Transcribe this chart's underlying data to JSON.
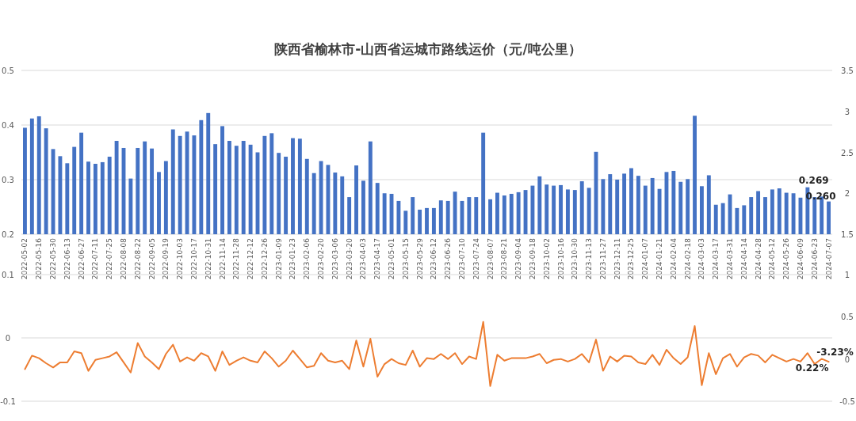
{
  "chart_data": [
    {
      "type": "bar",
      "title": "陕西省榆林市-山西省运城市路线运价（元/吨公里）",
      "categories": [
        "2022-05-02",
        null,
        "2022-05-16",
        null,
        "2022-05-30",
        null,
        "2022-06-13",
        null,
        "2022-06-27",
        null,
        "2022-07-11",
        null,
        "2022-07-25",
        null,
        "2022-08-08",
        null,
        "2022-08-22",
        null,
        "2022-09-05",
        null,
        "2022-09-19",
        null,
        "2022-10-03",
        null,
        "2022-10-17",
        null,
        "2022-10-31",
        null,
        "2022-11-14",
        null,
        "2022-11-28",
        null,
        "2022-12-12",
        null,
        "2022-12-26",
        null,
        "2023-01-09",
        null,
        "2023-01-23",
        null,
        "2023-02-06",
        null,
        "2023-02-20",
        null,
        "2023-03-06",
        null,
        "2023-03-20",
        null,
        "2023-04-03",
        null,
        "2023-04-17",
        null,
        "2023-05-01",
        null,
        "2023-05-15",
        null,
        "2023-05-29",
        null,
        "2023-06-12",
        null,
        "2023-06-26",
        null,
        "2023-07-10",
        null,
        "2023-07-24",
        null,
        "2023-08-07",
        null,
        "2023-08-21",
        null,
        "2023-09-04",
        null,
        "2023-09-18",
        null,
        "2023-10-02",
        null,
        "2023-10-16",
        null,
        "2023-10-30",
        null,
        "2023-11-13",
        null,
        "2023-11-27",
        null,
        "2023-12-11",
        null,
        "2023-12-25",
        null,
        "2024-01-07",
        null,
        "2024-01-21",
        null,
        "2024-02-04",
        null,
        "2024-02-18",
        null,
        "2024-03-03",
        null,
        "2024-03-17",
        null,
        "2024-03-31",
        null,
        "2024-04-14",
        null,
        "2024-04-28",
        null,
        "2024-05-12",
        null,
        "2024-05-26",
        null,
        "2024-06-09",
        null,
        "2024-06-23",
        null,
        "2024-07-07"
      ],
      "series": [
        {
          "color": "#4472c4",
          "values": [
            0.395,
            0.412,
            0.416,
            0.394,
            0.356,
            0.343,
            0.33,
            0.36,
            0.386,
            0.333,
            0.329,
            0.332,
            0.342,
            0.371,
            0.358,
            0.302,
            0.358,
            0.37,
            0.357,
            0.314,
            0.334,
            0.392,
            0.38,
            0.388,
            0.381,
            0.409,
            0.422,
            0.365,
            0.398,
            0.371,
            0.362,
            0.371,
            0.364,
            0.35,
            0.38,
            0.385,
            0.349,
            0.342,
            0.376,
            0.375,
            0.338,
            0.312,
            0.334,
            0.327,
            0.313,
            0.306,
            0.268,
            0.326,
            0.298,
            0.37,
            0.294,
            0.275,
            0.274,
            0.261,
            0.243,
            0.268,
            0.245,
            0.248,
            0.248,
            0.262,
            0.261,
            0.278,
            0.261,
            0.268,
            0.268,
            0.386,
            0.264,
            0.276,
            0.271,
            0.274,
            0.277,
            0.281,
            0.289,
            0.306,
            0.291,
            0.289,
            0.29,
            0.282,
            0.281,
            0.297,
            0.285,
            0.351,
            0.301,
            0.31,
            0.3,
            0.311,
            0.321,
            0.307,
            0.289,
            0.303,
            0.283,
            0.314,
            0.316,
            0.296,
            0.301,
            0.417,
            0.288,
            0.308,
            0.254,
            0.257,
            0.273,
            0.248,
            0.253,
            0.268,
            0.279,
            0.268,
            0.282,
            0.284,
            0.276,
            0.275,
            0.267,
            0.286,
            0.268,
            0.269,
            0.26
          ],
          "value_labels": [
            null,
            null,
            null,
            null,
            null,
            null,
            null,
            null,
            null,
            null,
            null,
            null,
            null,
            null,
            null,
            null,
            null,
            null,
            null,
            null,
            null,
            null,
            null,
            null,
            null,
            null,
            null,
            null,
            null,
            null,
            null,
            null,
            null,
            null,
            null,
            null,
            null,
            null,
            null,
            null,
            null,
            null,
            null,
            null,
            null,
            null,
            null,
            null,
            null,
            null,
            null,
            null,
            null,
            null,
            null,
            null,
            null,
            null,
            null,
            null,
            null,
            null,
            null,
            null,
            null,
            null,
            null,
            null,
            null,
            null,
            null,
            null,
            null,
            null,
            null,
            null,
            null,
            null,
            null,
            null,
            null,
            null,
            null,
            null,
            null,
            null,
            null,
            null,
            null,
            null,
            null,
            null,
            null,
            null,
            null,
            null,
            null,
            null,
            null,
            null,
            null,
            null,
            null,
            null,
            null,
            null,
            null,
            null,
            null,
            null,
            null,
            null,
            null,
            "0.269",
            "0.260"
          ]
        }
      ],
      "ylim": [
        0.2,
        0.5
      ],
      "yticks": [
        0.2,
        0.3,
        0.4,
        0.5
      ],
      "y2lim": [
        1.5,
        3.5
      ],
      "y2ticks": [
        1.5,
        2,
        2.5,
        3,
        3.5
      ],
      "grid": "y"
    },
    {
      "type": "line",
      "categories": [
        null,
        null,
        null,
        null,
        null,
        null,
        null,
        null,
        null,
        null,
        null,
        null,
        null,
        null,
        null,
        null,
        null,
        null,
        null,
        null,
        null,
        null,
        null,
        null,
        null,
        null,
        null,
        null,
        null,
        null,
        null,
        null,
        null,
        null,
        null,
        null,
        null,
        null,
        null,
        null,
        null,
        null,
        null,
        null,
        null,
        null,
        null,
        null,
        null,
        null,
        null,
        null,
        null,
        null,
        null,
        null,
        null,
        null,
        null,
        null,
        null,
        null,
        null,
        null,
        null,
        null,
        null,
        null,
        null,
        null,
        null,
        null,
        null,
        null,
        null,
        null,
        null,
        null,
        null,
        null,
        null,
        null,
        null,
        null,
        null,
        null,
        null,
        null,
        null,
        null,
        null,
        null,
        null,
        null,
        null,
        null,
        null,
        null,
        null,
        null,
        null,
        null,
        null,
        null,
        null,
        null,
        null,
        null,
        null,
        null,
        null,
        null,
        null,
        null,
        null
      ],
      "series": [
        {
          "color": "#ed7d31",
          "axis": "y2",
          "values": [
            -0.12,
            0.04,
            0.01,
            -0.05,
            -0.1,
            -0.04,
            -0.04,
            0.09,
            0.07,
            -0.14,
            -0.01,
            0.01,
            0.03,
            0.08,
            -0.04,
            -0.16,
            0.19,
            0.03,
            -0.04,
            -0.12,
            0.06,
            0.17,
            -0.03,
            0.02,
            -0.02,
            0.07,
            0.03,
            -0.14,
            0.09,
            -0.07,
            -0.02,
            0.02,
            -0.02,
            -0.04,
            0.09,
            0.01,
            -0.09,
            -0.02,
            0.1,
            0.0,
            -0.1,
            -0.08,
            0.07,
            -0.02,
            -0.04,
            -0.02,
            -0.12,
            0.22,
            -0.09,
            0.24,
            -0.21,
            -0.06,
            0.0,
            -0.05,
            -0.07,
            0.1,
            -0.09,
            0.01,
            0.0,
            0.06,
            0.0,
            0.07,
            -0.06,
            0.03,
            0.0,
            0.44,
            -0.32,
            0.05,
            -0.02,
            0.01,
            0.01,
            0.01,
            0.03,
            0.06,
            -0.05,
            -0.01,
            0.0,
            -0.03,
            0.0,
            0.06,
            -0.04,
            0.23,
            -0.14,
            0.03,
            -0.03,
            0.04,
            0.03,
            -0.04,
            -0.06,
            0.05,
            -0.07,
            0.11,
            0.01,
            -0.06,
            0.02,
            0.39,
            -0.31,
            0.07,
            -0.18,
            0.01,
            0.06,
            -0.09,
            0.02,
            0.06,
            0.04,
            -0.04,
            0.05,
            0.01,
            -0.03,
            0.0,
            -0.03,
            0.07,
            -0.06,
            0.0022,
            -0.0323
          ],
          "value_labels": [
            null,
            null,
            null,
            null,
            null,
            null,
            null,
            null,
            null,
            null,
            null,
            null,
            null,
            null,
            null,
            null,
            null,
            null,
            null,
            null,
            null,
            null,
            null,
            null,
            null,
            null,
            null,
            null,
            null,
            null,
            null,
            null,
            null,
            null,
            null,
            null,
            null,
            null,
            null,
            null,
            null,
            null,
            null,
            null,
            null,
            null,
            null,
            null,
            null,
            null,
            null,
            null,
            null,
            null,
            null,
            null,
            null,
            null,
            null,
            null,
            null,
            null,
            null,
            null,
            null,
            null,
            null,
            null,
            null,
            null,
            null,
            null,
            null,
            null,
            null,
            null,
            null,
            null,
            null,
            null,
            null,
            null,
            null,
            null,
            null,
            null,
            null,
            null,
            null,
            null,
            null,
            null,
            null,
            null,
            null,
            null,
            null,
            null,
            null,
            null,
            null,
            null,
            null,
            null,
            null,
            null,
            null,
            null,
            null,
            null,
            null,
            null,
            null,
            "0.22%",
            "-3.23%"
          ]
        }
      ],
      "ylim": [
        -0.1,
        0.1
      ],
      "yticks": [
        -0.1,
        0,
        0.1
      ],
      "y2lim": [
        -0.5,
        1
      ],
      "y2ticks": [
        -0.5,
        0,
        0.5,
        1
      ],
      "grid": "y",
      "tick_labels": "y"
    }
  ]
}
